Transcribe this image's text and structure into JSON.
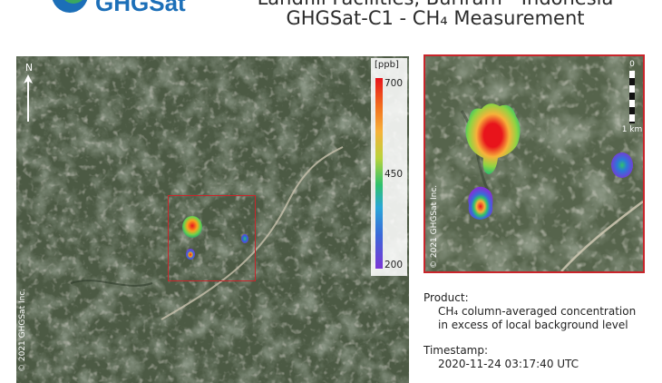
{
  "header": {
    "logo_icon": "ghgsat-logo",
    "logo_text": "GHGSat",
    "title_line1": "Landfill Facilities, Buriram - Indonesia",
    "title_line2": "GHGSat-C1 - CH₄ Measurement"
  },
  "main_map": {
    "north_label": "N",
    "north_icon": "north-arrow-icon",
    "credit": "© 2021 GHGSat Inc.",
    "legend": {
      "unit": "[ppb]",
      "ticks": [
        "700",
        "450",
        "200"
      ]
    }
  },
  "zoom_map": {
    "credit": "© 2021 GHGSat Inc.",
    "scale": {
      "zero": "0",
      "label": "1 km"
    }
  },
  "info": {
    "product_label": "Product:",
    "product_line1": "CH₄ column-averaged concentration",
    "product_line2": "in excess of local background level",
    "timestamp_label": "Timestamp:",
    "timestamp_value": "2020-11-24 03:17:40 UTC"
  },
  "colors": {
    "frame": "#c9252b",
    "plume_high": "#e8141b",
    "plume_low": "#7b36d6"
  }
}
